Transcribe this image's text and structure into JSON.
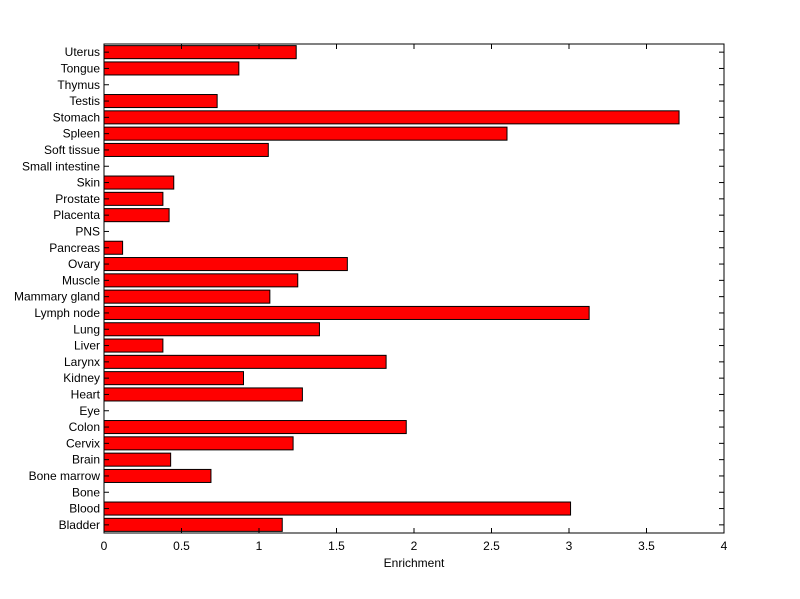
{
  "chart_data": {
    "type": "bar",
    "orientation": "horizontal",
    "title": "",
    "xlabel": "Enrichment",
    "ylabel": "",
    "xlim": [
      0,
      4
    ],
    "xticks": [
      "0",
      "0.5",
      "1",
      "1.5",
      "2",
      "2.5",
      "3",
      "3.5",
      "4"
    ],
    "grid": false,
    "legend": "none",
    "bar_color": "#ff0000",
    "categories": [
      "Bladder",
      "Blood",
      "Bone",
      "Bone marrow",
      "Brain",
      "Cervix",
      "Colon",
      "Eye",
      "Heart",
      "Kidney",
      "Larynx",
      "Liver",
      "Lung",
      "Lymph node",
      "Mammary gland",
      "Muscle",
      "Ovary",
      "Pancreas",
      "PNS",
      "Placenta",
      "Prostate",
      "Skin",
      "Small intestine",
      "Soft tissue",
      "Spleen",
      "Stomach",
      "Testis",
      "Thymus",
      "Tongue",
      "Uterus"
    ],
    "values": [
      1.15,
      3.01,
      0,
      0.69,
      0.43,
      1.22,
      1.95,
      0,
      1.28,
      0.9,
      1.82,
      0.38,
      1.39,
      3.13,
      1.07,
      1.25,
      1.57,
      0.12,
      0,
      0.42,
      0.38,
      0.45,
      0,
      1.06,
      2.6,
      3.71,
      0.73,
      0,
      0.87,
      1.24
    ]
  }
}
